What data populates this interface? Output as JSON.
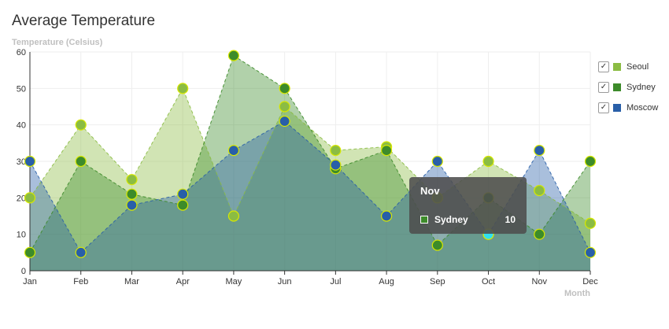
{
  "title": "Average Temperature",
  "colors": {
    "Seoul": "#8bbc43",
    "Sydney": "#3d8b2a",
    "Moscow": "#295fa8",
    "point_border": "#d8e800",
    "active_point": "#30e0f0"
  },
  "chart_data": {
    "type": "area",
    "title": "Average Temperature",
    "ylabel": "Temperature (Celsius)",
    "xlabel": "Month",
    "ylim": [
      0,
      60
    ],
    "yticks": [
      0,
      10,
      20,
      30,
      40,
      50,
      60
    ],
    "grid": true,
    "legend_position": "right",
    "categories": [
      "Jan",
      "Feb",
      "Mar",
      "Apr",
      "May",
      "Jun",
      "Jul",
      "Aug",
      "Sep",
      "Oct",
      "Nov",
      "Dec"
    ],
    "series": [
      {
        "name": "Seoul",
        "values": [
          20,
          40,
          25,
          50,
          15,
          45,
          33,
          34,
          20,
          30,
          22,
          13
        ]
      },
      {
        "name": "Sydney",
        "values": [
          5,
          30,
          21,
          18,
          59,
          50,
          28,
          33,
          7,
          20,
          10,
          30
        ]
      },
      {
        "name": "Moscow",
        "values": [
          30,
          5,
          18,
          21,
          33,
          41,
          29,
          15,
          30,
          10,
          33,
          5
        ]
      }
    ]
  },
  "legend": [
    {
      "label": "Seoul",
      "checked": true
    },
    {
      "label": "Sydney",
      "checked": true
    },
    {
      "label": "Moscow",
      "checked": true
    }
  ],
  "tooltip": {
    "title": "Nov",
    "series": "Sydney",
    "value": "10"
  }
}
